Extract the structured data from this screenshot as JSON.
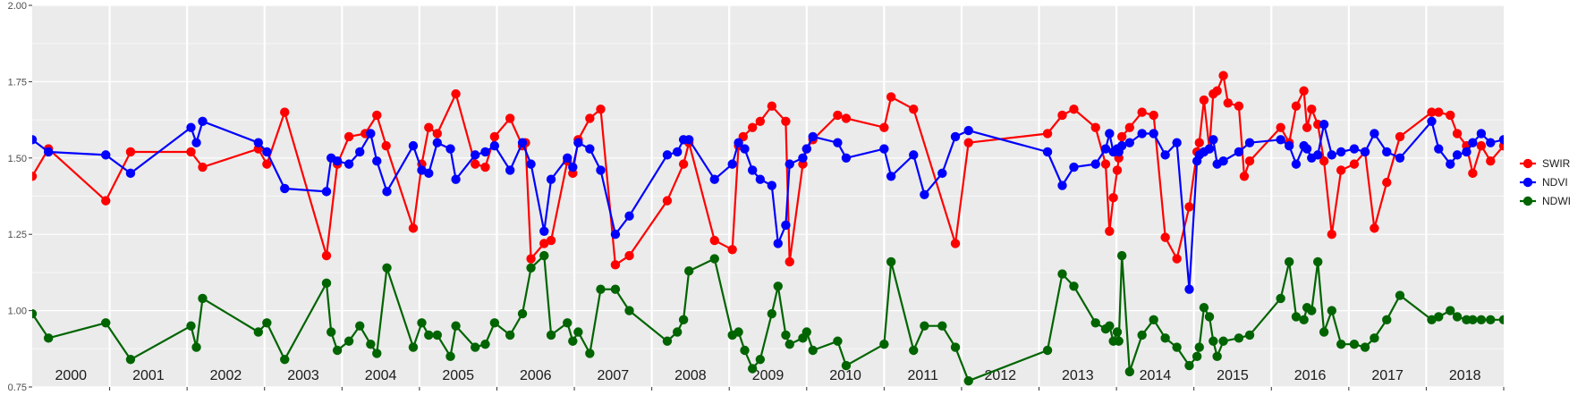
{
  "chart_data": {
    "type": "line",
    "title": "",
    "xlabel": "",
    "ylabel": "",
    "xlim": [
      2000.0,
      2019.0
    ],
    "ylim": [
      0.75,
      2.0
    ],
    "yticks": [
      "0.75",
      "1.00",
      "1.25",
      "1.50",
      "1.75",
      "2.00"
    ],
    "year_labels": [
      "2000",
      "2001",
      "2002",
      "2003",
      "2004",
      "2005",
      "2006",
      "2007",
      "2008",
      "2009",
      "2010",
      "2011",
      "2012",
      "2013",
      "2014",
      "2015",
      "2016",
      "2017",
      "2018"
    ],
    "grid": true,
    "legend_position": "right",
    "series": [
      {
        "name": "SWIR",
        "color": "#ff0000",
        "x": [
          2000.0,
          2000.21,
          2000.95,
          2001.27,
          2002.05,
          2002.2,
          2002.92,
          2003.03,
          2003.26,
          2003.8,
          2003.94,
          2004.09,
          2004.3,
          2004.45,
          2004.57,
          2004.92,
          2005.03,
          2005.12,
          2005.23,
          2005.47,
          2005.72,
          2005.85,
          2005.97,
          2006.17,
          2006.33,
          2006.37,
          2006.44,
          2006.61,
          2006.7,
          2006.91,
          2006.98,
          2007.05,
          2007.2,
          2007.34,
          2007.53,
          2007.71,
          2008.2,
          2008.41,
          2008.48,
          2008.81,
          2009.04,
          2009.12,
          2009.18,
          2009.3,
          2009.4,
          2009.55,
          2009.73,
          2009.78,
          2009.95,
          2010.0,
          2010.08,
          2010.4,
          2010.51,
          2011.0,
          2011.09,
          2011.38,
          2011.92,
          2012.09,
          2013.11,
          2013.3,
          2013.45,
          2013.73,
          2013.86,
          2013.91,
          2013.96,
          2014.01,
          2014.03,
          2014.07,
          2014.17,
          2014.33,
          2014.48,
          2014.63,
          2014.78,
          2014.94,
          2015.04,
          2015.07,
          2015.13,
          2015.2,
          2015.25,
          2015.3,
          2015.38,
          2015.44,
          2015.58,
          2015.65,
          2015.72,
          2016.12,
          2016.23,
          2016.32,
          2016.42,
          2016.46,
          2016.52,
          2016.6,
          2016.68,
          2016.78,
          2016.9,
          2017.07,
          2017.21,
          2017.33,
          2017.49,
          2017.66,
          2018.07,
          2018.16,
          2018.31,
          2018.4,
          2018.52,
          2018.6,
          2018.71,
          2018.83,
          2019.0
        ],
        "values": [
          1.44,
          1.53,
          1.36,
          1.52,
          1.52,
          1.47,
          1.53,
          1.48,
          1.65,
          1.18,
          1.48,
          1.57,
          1.58,
          1.64,
          1.54,
          1.27,
          1.48,
          1.6,
          1.58,
          1.71,
          1.48,
          1.47,
          1.57,
          1.63,
          1.54,
          1.55,
          1.17,
          1.22,
          1.23,
          1.49,
          1.45,
          1.56,
          1.63,
          1.66,
          1.15,
          1.18,
          1.36,
          1.48,
          1.55,
          1.23,
          1.2,
          1.54,
          1.57,
          1.6,
          1.62,
          1.67,
          1.62,
          1.16,
          1.48,
          1.53,
          1.56,
          1.64,
          1.63,
          1.6,
          1.7,
          1.66,
          1.22,
          1.55,
          1.58,
          1.64,
          1.66,
          1.6,
          1.48,
          1.26,
          1.37,
          1.46,
          1.5,
          1.57,
          1.6,
          1.65,
          1.64,
          1.24,
          1.17,
          1.34,
          1.52,
          1.55,
          1.69,
          1.53,
          1.71,
          1.72,
          1.77,
          1.68,
          1.67,
          1.44,
          1.49,
          1.6,
          1.55,
          1.67,
          1.72,
          1.6,
          1.66,
          1.61,
          1.49,
          1.25,
          1.46,
          1.48,
          1.52,
          1.27,
          1.42,
          1.57,
          1.65,
          1.65,
          1.64,
          1.58,
          1.54,
          1.45,
          1.54,
          1.49,
          1.54
        ]
      },
      {
        "name": "NDVI",
        "color": "#0000ff",
        "x": [
          2000.0,
          2000.21,
          2000.95,
          2001.27,
          2002.05,
          2002.12,
          2002.2,
          2002.92,
          2003.03,
          2003.26,
          2003.8,
          2003.86,
          2003.94,
          2004.09,
          2004.23,
          2004.37,
          2004.45,
          2004.58,
          2004.92,
          2005.03,
          2005.12,
          2005.23,
          2005.4,
          2005.47,
          2005.72,
          2005.85,
          2005.97,
          2006.17,
          2006.33,
          2006.44,
          2006.61,
          2006.7,
          2006.91,
          2006.98,
          2007.05,
          2007.2,
          2007.34,
          2007.53,
          2007.71,
          2008.2,
          2008.33,
          2008.41,
          2008.48,
          2008.81,
          2009.04,
          2009.12,
          2009.2,
          2009.3,
          2009.4,
          2009.55,
          2009.63,
          2009.73,
          2009.78,
          2009.95,
          2010.0,
          2010.08,
          2010.4,
          2010.51,
          2011.0,
          2011.09,
          2011.38,
          2011.52,
          2011.75,
          2011.92,
          2012.09,
          2013.11,
          2013.3,
          2013.45,
          2013.73,
          2013.86,
          2013.91,
          2013.96,
          2014.01,
          2014.03,
          2014.07,
          2014.17,
          2014.33,
          2014.48,
          2014.63,
          2014.78,
          2014.94,
          2015.04,
          2015.07,
          2015.13,
          2015.2,
          2015.25,
          2015.3,
          2015.38,
          2015.58,
          2015.72,
          2016.12,
          2016.23,
          2016.32,
          2016.42,
          2016.46,
          2016.52,
          2016.6,
          2016.68,
          2016.78,
          2016.9,
          2017.07,
          2017.21,
          2017.33,
          2017.49,
          2017.66,
          2018.07,
          2018.16,
          2018.31,
          2018.4,
          2018.52,
          2018.6,
          2018.71,
          2018.83,
          2019.0
        ],
        "values": [
          1.56,
          1.52,
          1.51,
          1.45,
          1.6,
          1.55,
          1.62,
          1.55,
          1.52,
          1.4,
          1.39,
          1.5,
          1.49,
          1.48,
          1.52,
          1.58,
          1.49,
          1.39,
          1.54,
          1.46,
          1.45,
          1.55,
          1.53,
          1.43,
          1.51,
          1.52,
          1.54,
          1.46,
          1.55,
          1.48,
          1.26,
          1.43,
          1.5,
          1.47,
          1.55,
          1.53,
          1.46,
          1.25,
          1.31,
          1.51,
          1.52,
          1.56,
          1.56,
          1.43,
          1.48,
          1.55,
          1.53,
          1.46,
          1.43,
          1.41,
          1.22,
          1.28,
          1.48,
          1.5,
          1.53,
          1.57,
          1.55,
          1.5,
          1.53,
          1.44,
          1.51,
          1.38,
          1.45,
          1.57,
          1.59,
          1.52,
          1.41,
          1.47,
          1.48,
          1.53,
          1.58,
          1.52,
          1.53,
          1.52,
          1.54,
          1.55,
          1.58,
          1.58,
          1.51,
          1.55,
          1.07,
          1.49,
          1.51,
          1.52,
          1.53,
          1.56,
          1.48,
          1.49,
          1.52,
          1.55,
          1.56,
          1.54,
          1.48,
          1.54,
          1.53,
          1.5,
          1.51,
          1.61,
          1.51,
          1.52,
          1.53,
          1.52,
          1.58,
          1.52,
          1.5,
          1.62,
          1.53,
          1.48,
          1.51,
          1.52,
          1.55,
          1.58,
          1.55,
          1.56
        ]
      },
      {
        "name": "NDWI",
        "color": "#006400",
        "x": [
          2000.0,
          2000.21,
          2000.95,
          2001.27,
          2002.05,
          2002.12,
          2002.2,
          2002.92,
          2003.03,
          2003.26,
          2003.8,
          2003.86,
          2003.94,
          2004.09,
          2004.23,
          2004.37,
          2004.45,
          2004.58,
          2004.92,
          2005.03,
          2005.12,
          2005.23,
          2005.4,
          2005.47,
          2005.72,
          2005.85,
          2005.97,
          2006.17,
          2006.33,
          2006.44,
          2006.61,
          2006.7,
          2006.91,
          2006.98,
          2007.05,
          2007.2,
          2007.34,
          2007.53,
          2007.71,
          2008.2,
          2008.33,
          2008.41,
          2008.48,
          2008.81,
          2009.04,
          2009.12,
          2009.2,
          2009.3,
          2009.4,
          2009.55,
          2009.63,
          2009.73,
          2009.78,
          2009.95,
          2010.0,
          2010.08,
          2010.4,
          2010.51,
          2011.0,
          2011.09,
          2011.38,
          2011.52,
          2011.75,
          2011.92,
          2012.09,
          2013.11,
          2013.3,
          2013.45,
          2013.73,
          2013.86,
          2013.91,
          2013.96,
          2014.01,
          2014.03,
          2014.07,
          2014.17,
          2014.33,
          2014.48,
          2014.63,
          2014.78,
          2014.94,
          2015.04,
          2015.07,
          2015.13,
          2015.2,
          2015.25,
          2015.3,
          2015.38,
          2015.58,
          2015.72,
          2016.12,
          2016.23,
          2016.32,
          2016.42,
          2016.46,
          2016.52,
          2016.6,
          2016.68,
          2016.78,
          2016.9,
          2017.07,
          2017.21,
          2017.33,
          2017.49,
          2017.66,
          2018.07,
          2018.16,
          2018.31,
          2018.4,
          2018.52,
          2018.6,
          2018.71,
          2018.83,
          2019.0
        ],
        "values": [
          0.99,
          0.91,
          0.96,
          0.84,
          0.95,
          0.88,
          1.04,
          0.93,
          0.96,
          0.84,
          1.09,
          0.93,
          0.87,
          0.9,
          0.95,
          0.89,
          0.86,
          1.14,
          0.88,
          0.96,
          0.92,
          0.92,
          0.85,
          0.95,
          0.88,
          0.89,
          0.96,
          0.92,
          0.99,
          1.14,
          1.18,
          0.92,
          0.96,
          0.9,
          0.93,
          0.86,
          1.07,
          1.07,
          1.0,
          0.9,
          0.93,
          0.97,
          1.13,
          1.17,
          0.92,
          0.93,
          0.87,
          0.81,
          0.84,
          0.99,
          1.08,
          0.92,
          0.89,
          0.91,
          0.93,
          0.87,
          0.9,
          0.82,
          0.89,
          1.16,
          0.87,
          0.95,
          0.95,
          0.88,
          0.77,
          0.87,
          1.12,
          1.08,
          0.96,
          0.94,
          0.95,
          0.9,
          0.93,
          0.9,
          1.18,
          0.8,
          0.92,
          0.97,
          0.91,
          0.88,
          0.82,
          0.85,
          0.88,
          1.01,
          0.98,
          0.9,
          0.85,
          0.9,
          0.91,
          0.92,
          1.04,
          1.16,
          0.98,
          0.97,
          1.01,
          1.0,
          1.16,
          0.93,
          1.0,
          0.89,
          0.89,
          0.88,
          0.91,
          0.97,
          1.05,
          0.97,
          0.98,
          1.0,
          0.98,
          0.97,
          0.97,
          0.97,
          0.97,
          0.97
        ]
      }
    ]
  }
}
